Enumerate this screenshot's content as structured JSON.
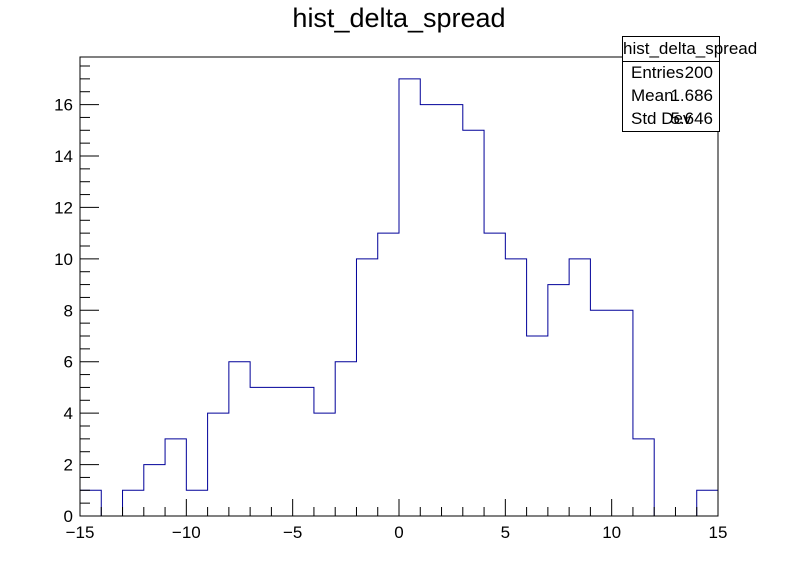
{
  "chart_data": {
    "type": "histogram",
    "title": "hist_delta_spread",
    "xlabel": "",
    "ylabel": "",
    "xlim": [
      -15,
      15
    ],
    "ylim": [
      0,
      17.85
    ],
    "x_ticks": [
      -15,
      -10,
      -5,
      0,
      5,
      10,
      15
    ],
    "x_tick_labels": [
      "−15",
      "−10",
      "−5",
      "0",
      "5",
      "10",
      "15"
    ],
    "y_ticks": [
      0,
      2,
      4,
      6,
      8,
      10,
      12,
      14,
      16
    ],
    "y_tick_labels": [
      "0",
      "2",
      "4",
      "6",
      "8",
      "10",
      "12",
      "14",
      "16"
    ],
    "bin_edges": [
      -15,
      -14,
      -13,
      -12,
      -11,
      -10,
      -9,
      -8,
      -7,
      -6,
      -5,
      -4,
      -3,
      -2,
      -1,
      0,
      1,
      2,
      3,
      4,
      5,
      6,
      7,
      8,
      9,
      10,
      11,
      12,
      13,
      14,
      15
    ],
    "values": [
      1,
      0,
      1,
      2,
      3,
      1,
      4,
      6,
      5,
      5,
      5,
      4,
      6,
      10,
      11,
      17,
      16,
      16,
      15,
      11,
      10,
      7,
      9,
      10,
      8,
      8,
      3,
      0,
      0,
      1
    ],
    "line_color": "#000099",
    "grid": false,
    "stats_box": {
      "title": "hist_delta_spread",
      "rows": [
        {
          "label": "Entries",
          "value": "200"
        },
        {
          "label": "Mean",
          "value": "1.686"
        },
        {
          "label": "Std Dev",
          "value": "5.646"
        }
      ],
      "placement": "top-right"
    }
  }
}
